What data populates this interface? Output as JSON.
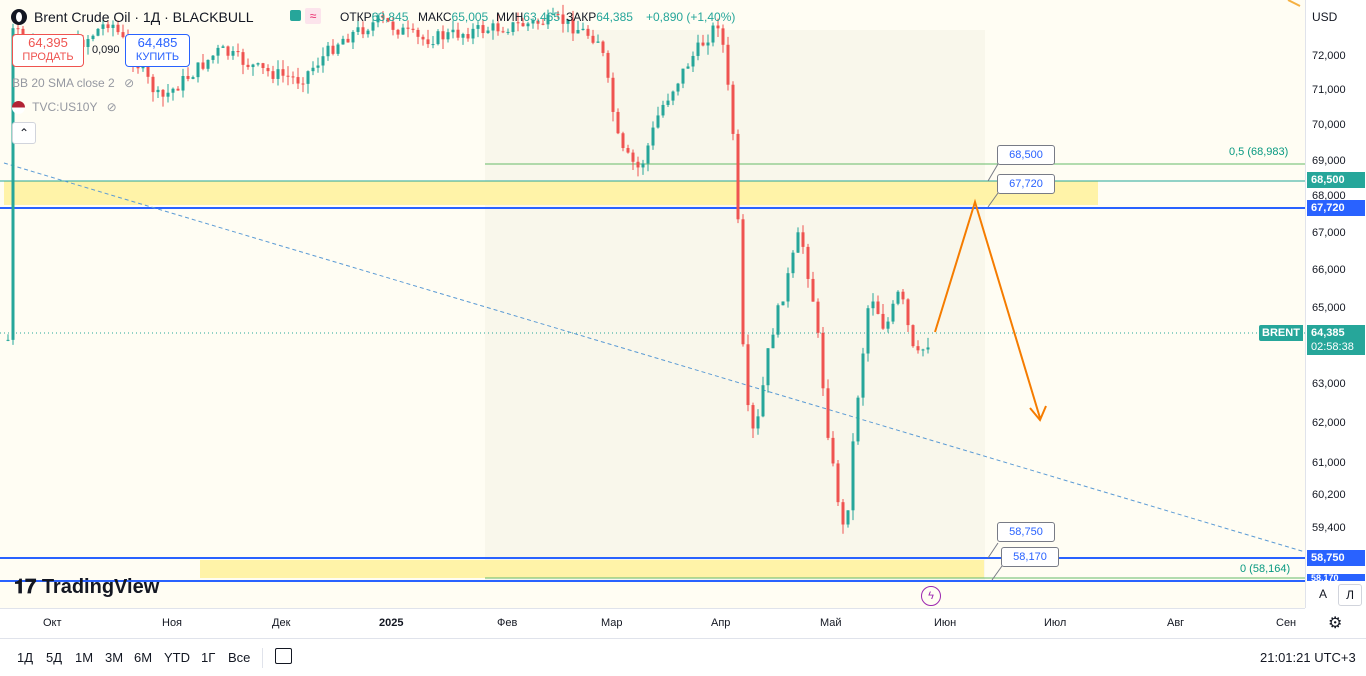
{
  "instrument": {
    "title": "Brent Crude Oil · 1Д · BLACKBULL",
    "ohlc": {
      "open_label": "ОТКР",
      "open": "63,845",
      "high_label": "МАКС",
      "high": "65,005",
      "low_label": "МИН",
      "low": "63,465",
      "close_label": "ЗАКР",
      "close": "64,385",
      "change": "+0,890 (+1,40%)"
    }
  },
  "trade": {
    "sell_price": "64,395",
    "sell_label": "ПРОДАТЬ",
    "spread": "0,090",
    "buy_price": "64,485",
    "buy_label": "КУПИТЬ"
  },
  "indicators": [
    {
      "label": "BB 20 SMA close 2"
    },
    {
      "label": "TVC:US10Y"
    }
  ],
  "currency": "USD",
  "price_ticks": [
    "72,000",
    "71,000",
    "70,000",
    "69,000",
    "68,000",
    "67,000",
    "66,000",
    "65,000",
    "63,000",
    "62,000",
    "61,000",
    "60,200",
    "59,400"
  ],
  "axis_labels": {
    "level_high": "68,500",
    "level_mid": "67,720",
    "current_symbol": "BRENT",
    "current_price": "64,385",
    "countdown": "02:58:38",
    "level_low": "58,750",
    "level_lowest": "58,170"
  },
  "callouts": {
    "top1": "68,500",
    "top2": "67,720",
    "bottom1": "58,750",
    "bottom2": "58,170"
  },
  "fib": {
    "top": "0,5 (68,983)",
    "bottom": "0 (58,164)"
  },
  "time_ticks": [
    "Окт",
    "Ноя",
    "Дек",
    "2025",
    "Фев",
    "Мар",
    "Апр",
    "Май",
    "Июн",
    "Июл",
    "Авг",
    "Сен"
  ],
  "timeframes": [
    "1Д",
    "5Д",
    "1М",
    "3М",
    "6М",
    "YTD",
    "1Г",
    "Все"
  ],
  "clock": "21:01:21 UTC+3",
  "logo_text": "TradingView",
  "scale_buttons": {
    "auto": "A",
    "log": "Л"
  },
  "colors": {
    "up": "#26a69a",
    "down": "#ef5350",
    "zone": "#fff3a8",
    "level_line": "#2962ff",
    "forecast": "#f57c00",
    "trend": "#5b9bd5",
    "current": "#26a69a"
  }
}
